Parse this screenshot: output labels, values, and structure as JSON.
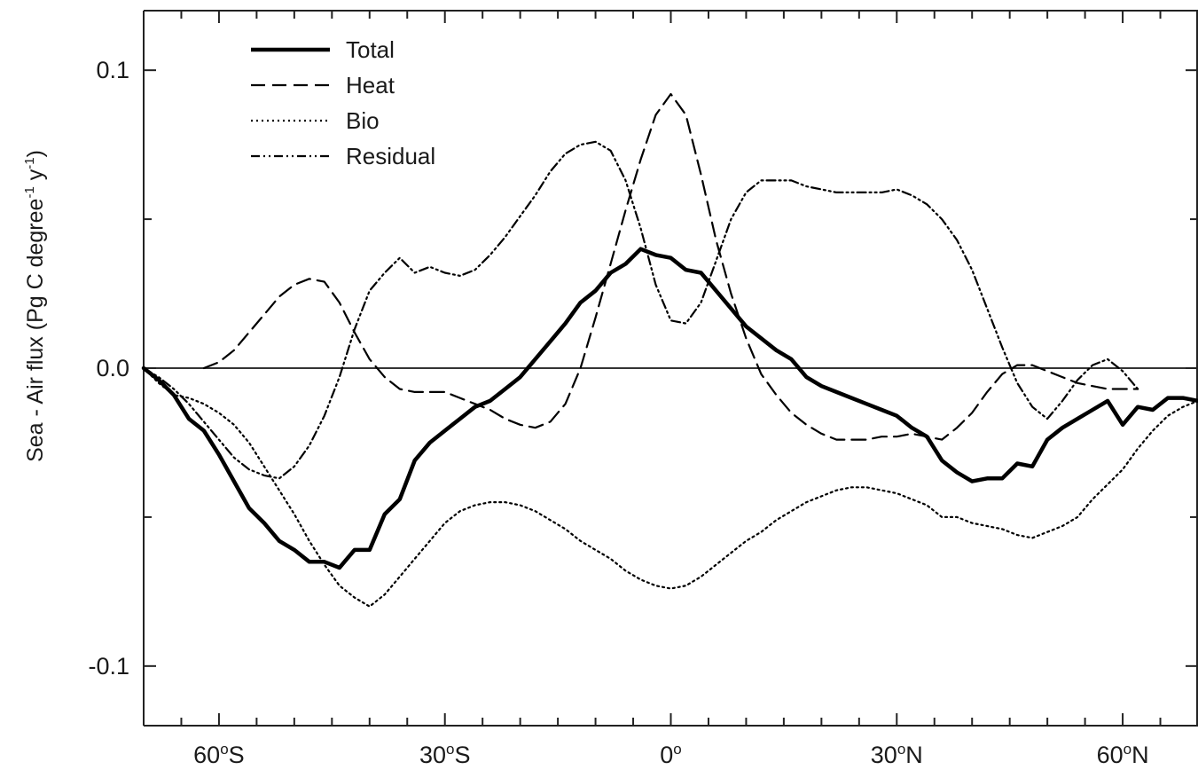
{
  "chart_data": {
    "type": "line",
    "xlabel": "",
    "ylabel": {
      "prefix": "Sea - Air flux (Pg C degree",
      "sup1": "-1",
      "middle": " y",
      "sup2": "-1",
      "suffix": ")"
    },
    "xlim": [
      -70,
      70
    ],
    "ylim": [
      -0.12,
      0.12
    ],
    "x_ticks": [
      {
        "value": -60,
        "num": "60",
        "deg": "o",
        "hem": "S"
      },
      {
        "value": -30,
        "num": "30",
        "deg": "o",
        "hem": "S"
      },
      {
        "value": 0,
        "num": "0",
        "deg": "o",
        "hem": ""
      },
      {
        "value": 30,
        "num": "30",
        "deg": "o",
        "hem": "N"
      },
      {
        "value": 60,
        "num": "60",
        "deg": "o",
        "hem": "N"
      }
    ],
    "y_ticks": [
      {
        "value": 0.1,
        "label": "0.1"
      },
      {
        "value": 0.0,
        "label": "0.0"
      },
      {
        "value": -0.1,
        "label": "-0.1"
      }
    ],
    "minor_y_ticks": [
      0.05,
      -0.05
    ],
    "minor_x_ticks": [
      -70,
      -65,
      -55,
      -50,
      -45,
      -40,
      -35,
      -25,
      -20,
      -15,
      -10,
      -5,
      5,
      10,
      15,
      20,
      25,
      35,
      40,
      45,
      50,
      55,
      65
    ],
    "zero_line": true,
    "grid": false,
    "legend_position": "top-left",
    "series": [
      {
        "name": "Total",
        "style": "solid-thick",
        "color": "#000000",
        "points": [
          [
            -70,
            0.0
          ],
          [
            -68,
            -0.004
          ],
          [
            -66,
            -0.009
          ],
          [
            -64,
            -0.017
          ],
          [
            -62,
            -0.021
          ],
          [
            -60,
            -0.029
          ],
          [
            -58,
            -0.038
          ],
          [
            -56,
            -0.047
          ],
          [
            -54,
            -0.052
          ],
          [
            -52,
            -0.058
          ],
          [
            -50,
            -0.061
          ],
          [
            -48,
            -0.065
          ],
          [
            -46,
            -0.065
          ],
          [
            -44,
            -0.067
          ],
          [
            -42,
            -0.061
          ],
          [
            -40,
            -0.061
          ],
          [
            -38,
            -0.049
          ],
          [
            -36,
            -0.044
          ],
          [
            -34,
            -0.031
          ],
          [
            -32,
            -0.025
          ],
          [
            -30,
            -0.021
          ],
          [
            -28,
            -0.017
          ],
          [
            -26,
            -0.013
          ],
          [
            -24,
            -0.011
          ],
          [
            -22,
            -0.007
          ],
          [
            -20,
            -0.003
          ],
          [
            -18,
            0.003
          ],
          [
            -16,
            0.009
          ],
          [
            -14,
            0.015
          ],
          [
            -12,
            0.022
          ],
          [
            -10,
            0.026
          ],
          [
            -8,
            0.032
          ],
          [
            -6,
            0.035
          ],
          [
            -4,
            0.04
          ],
          [
            -2,
            0.038
          ],
          [
            0,
            0.037
          ],
          [
            2,
            0.033
          ],
          [
            4,
            0.032
          ],
          [
            6,
            0.026
          ],
          [
            8,
            0.02
          ],
          [
            10,
            0.014
          ],
          [
            12,
            0.01
          ],
          [
            14,
            0.006
          ],
          [
            16,
            0.003
          ],
          [
            18,
            -0.003
          ],
          [
            20,
            -0.006
          ],
          [
            22,
            -0.008
          ],
          [
            24,
            -0.01
          ],
          [
            26,
            -0.012
          ],
          [
            28,
            -0.014
          ],
          [
            30,
            -0.016
          ],
          [
            32,
            -0.02
          ],
          [
            34,
            -0.023
          ],
          [
            36,
            -0.031
          ],
          [
            38,
            -0.035
          ],
          [
            40,
            -0.038
          ],
          [
            42,
            -0.037
          ],
          [
            44,
            -0.037
          ],
          [
            46,
            -0.032
          ],
          [
            48,
            -0.033
          ],
          [
            50,
            -0.024
          ],
          [
            52,
            -0.02
          ],
          [
            54,
            -0.017
          ],
          [
            56,
            -0.014
          ],
          [
            58,
            -0.011
          ],
          [
            60,
            -0.019
          ],
          [
            62,
            -0.013
          ],
          [
            64,
            -0.014
          ],
          [
            66,
            -0.01
          ],
          [
            68,
            -0.01
          ],
          [
            70,
            -0.011
          ]
        ]
      },
      {
        "name": "Heat",
        "style": "dashed",
        "color": "#000000",
        "points": [
          [
            -62,
            0.0
          ],
          [
            -60,
            0.002
          ],
          [
            -58,
            0.006
          ],
          [
            -56,
            0.012
          ],
          [
            -54,
            0.018
          ],
          [
            -52,
            0.024
          ],
          [
            -50,
            0.028
          ],
          [
            -48,
            0.03
          ],
          [
            -46,
            0.029
          ],
          [
            -44,
            0.022
          ],
          [
            -42,
            0.012
          ],
          [
            -40,
            0.003
          ],
          [
            -38,
            -0.003
          ],
          [
            -36,
            -0.007
          ],
          [
            -34,
            -0.008
          ],
          [
            -32,
            -0.008
          ],
          [
            -30,
            -0.008
          ],
          [
            -28,
            -0.01
          ],
          [
            -26,
            -0.012
          ],
          [
            -24,
            -0.014
          ],
          [
            -22,
            -0.017
          ],
          [
            -20,
            -0.019
          ],
          [
            -18,
            -0.02
          ],
          [
            -16,
            -0.018
          ],
          [
            -14,
            -0.012
          ],
          [
            -12,
            0.0
          ],
          [
            -10,
            0.017
          ],
          [
            -8,
            0.035
          ],
          [
            -6,
            0.053
          ],
          [
            -4,
            0.07
          ],
          [
            -2,
            0.085
          ],
          [
            0,
            0.092
          ],
          [
            2,
            0.085
          ],
          [
            4,
            0.065
          ],
          [
            6,
            0.043
          ],
          [
            8,
            0.025
          ],
          [
            10,
            0.01
          ],
          [
            12,
            -0.002
          ],
          [
            14,
            -0.009
          ],
          [
            16,
            -0.015
          ],
          [
            18,
            -0.019
          ],
          [
            20,
            -0.022
          ],
          [
            22,
            -0.024
          ],
          [
            24,
            -0.024
          ],
          [
            26,
            -0.024
          ],
          [
            28,
            -0.023
          ],
          [
            30,
            -0.023
          ],
          [
            32,
            -0.022
          ],
          [
            34,
            -0.023
          ],
          [
            36,
            -0.024
          ],
          [
            38,
            -0.02
          ],
          [
            40,
            -0.015
          ],
          [
            42,
            -0.008
          ],
          [
            44,
            -0.002
          ],
          [
            46,
            0.001
          ],
          [
            48,
            0.001
          ],
          [
            50,
            -0.001
          ],
          [
            52,
            -0.003
          ],
          [
            54,
            -0.005
          ],
          [
            56,
            -0.006
          ],
          [
            58,
            -0.007
          ],
          [
            60,
            -0.007
          ],
          [
            62,
            -0.007
          ]
        ]
      },
      {
        "name": "Bio",
        "style": "dotted",
        "color": "#000000",
        "points": [
          [
            -70,
            0.0
          ],
          [
            -68,
            -0.005
          ],
          [
            -66,
            -0.009
          ],
          [
            -64,
            -0.01
          ],
          [
            -62,
            -0.012
          ],
          [
            -60,
            -0.015
          ],
          [
            -58,
            -0.019
          ],
          [
            -56,
            -0.025
          ],
          [
            -54,
            -0.033
          ],
          [
            -52,
            -0.041
          ],
          [
            -50,
            -0.049
          ],
          [
            -48,
            -0.058
          ],
          [
            -46,
            -0.066
          ],
          [
            -44,
            -0.073
          ],
          [
            -42,
            -0.077
          ],
          [
            -40,
            -0.08
          ],
          [
            -38,
            -0.076
          ],
          [
            -36,
            -0.07
          ],
          [
            -34,
            -0.064
          ],
          [
            -32,
            -0.058
          ],
          [
            -30,
            -0.052
          ],
          [
            -28,
            -0.048
          ],
          [
            -26,
            -0.046
          ],
          [
            -24,
            -0.045
          ],
          [
            -22,
            -0.045
          ],
          [
            -20,
            -0.046
          ],
          [
            -18,
            -0.048
          ],
          [
            -16,
            -0.051
          ],
          [
            -14,
            -0.054
          ],
          [
            -12,
            -0.058
          ],
          [
            -10,
            -0.061
          ],
          [
            -8,
            -0.064
          ],
          [
            -6,
            -0.068
          ],
          [
            -4,
            -0.071
          ],
          [
            -2,
            -0.073
          ],
          [
            0,
            -0.074
          ],
          [
            2,
            -0.073
          ],
          [
            4,
            -0.07
          ],
          [
            6,
            -0.066
          ],
          [
            8,
            -0.062
          ],
          [
            10,
            -0.058
          ],
          [
            12,
            -0.055
          ],
          [
            14,
            -0.051
          ],
          [
            16,
            -0.048
          ],
          [
            18,
            -0.045
          ],
          [
            20,
            -0.043
          ],
          [
            22,
            -0.041
          ],
          [
            24,
            -0.04
          ],
          [
            26,
            -0.04
          ],
          [
            28,
            -0.041
          ],
          [
            30,
            -0.042
          ],
          [
            32,
            -0.044
          ],
          [
            34,
            -0.046
          ],
          [
            36,
            -0.05
          ],
          [
            38,
            -0.05
          ],
          [
            40,
            -0.052
          ],
          [
            42,
            -0.053
          ],
          [
            44,
            -0.054
          ],
          [
            46,
            -0.056
          ],
          [
            48,
            -0.057
          ],
          [
            50,
            -0.055
          ],
          [
            52,
            -0.053
          ],
          [
            54,
            -0.05
          ],
          [
            56,
            -0.044
          ],
          [
            58,
            -0.039
          ],
          [
            60,
            -0.034
          ],
          [
            62,
            -0.027
          ],
          [
            64,
            -0.021
          ],
          [
            66,
            -0.016
          ],
          [
            68,
            -0.013
          ],
          [
            70,
            -0.011
          ]
        ]
      },
      {
        "name": "Residual",
        "style": "dash-dot",
        "color": "#000000",
        "points": [
          [
            -70,
            0.0
          ],
          [
            -68,
            -0.003
          ],
          [
            -66,
            -0.007
          ],
          [
            -64,
            -0.012
          ],
          [
            -62,
            -0.018
          ],
          [
            -60,
            -0.024
          ],
          [
            -58,
            -0.03
          ],
          [
            -56,
            -0.034
          ],
          [
            -54,
            -0.036
          ],
          [
            -52,
            -0.037
          ],
          [
            -50,
            -0.033
          ],
          [
            -48,
            -0.026
          ],
          [
            -46,
            -0.016
          ],
          [
            -44,
            -0.003
          ],
          [
            -42,
            0.013
          ],
          [
            -40,
            0.026
          ],
          [
            -38,
            0.032
          ],
          [
            -36,
            0.037
          ],
          [
            -34,
            0.032
          ],
          [
            -32,
            0.034
          ],
          [
            -30,
            0.032
          ],
          [
            -28,
            0.031
          ],
          [
            -26,
            0.033
          ],
          [
            -24,
            0.038
          ],
          [
            -22,
            0.044
          ],
          [
            -20,
            0.051
          ],
          [
            -18,
            0.058
          ],
          [
            -16,
            0.066
          ],
          [
            -14,
            0.072
          ],
          [
            -12,
            0.075
          ],
          [
            -10,
            0.076
          ],
          [
            -8,
            0.073
          ],
          [
            -6,
            0.063
          ],
          [
            -4,
            0.047
          ],
          [
            -2,
            0.028
          ],
          [
            0,
            0.016
          ],
          [
            2,
            0.015
          ],
          [
            4,
            0.022
          ],
          [
            6,
            0.036
          ],
          [
            8,
            0.05
          ],
          [
            10,
            0.059
          ],
          [
            12,
            0.063
          ],
          [
            14,
            0.063
          ],
          [
            16,
            0.063
          ],
          [
            18,
            0.061
          ],
          [
            20,
            0.06
          ],
          [
            22,
            0.059
          ],
          [
            24,
            0.059
          ],
          [
            26,
            0.059
          ],
          [
            28,
            0.059
          ],
          [
            30,
            0.06
          ],
          [
            32,
            0.058
          ],
          [
            34,
            0.055
          ],
          [
            36,
            0.05
          ],
          [
            38,
            0.043
          ],
          [
            40,
            0.033
          ],
          [
            42,
            0.02
          ],
          [
            44,
            0.007
          ],
          [
            46,
            -0.005
          ],
          [
            48,
            -0.013
          ],
          [
            50,
            -0.017
          ],
          [
            52,
            -0.011
          ],
          [
            54,
            -0.004
          ],
          [
            56,
            0.001
          ],
          [
            58,
            0.003
          ],
          [
            60,
            -0.001
          ],
          [
            62,
            -0.007
          ]
        ]
      }
    ]
  }
}
